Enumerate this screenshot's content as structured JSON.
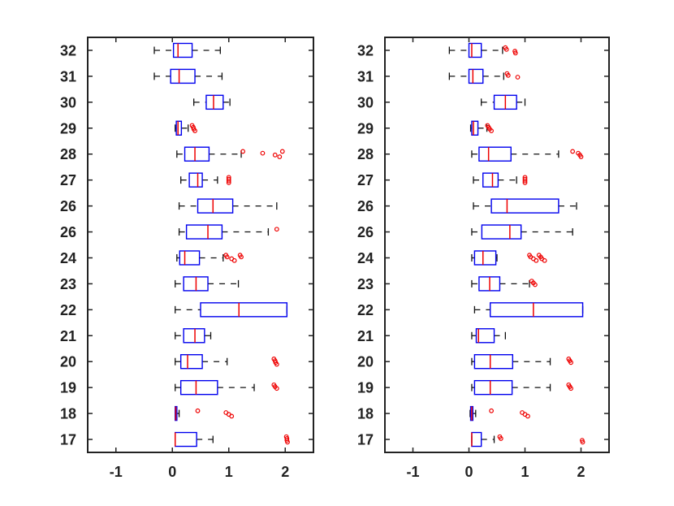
{
  "chart_data": [
    {
      "type": "boxplot",
      "orientation": "horizontal",
      "title": "",
      "xlabel": "",
      "ylabel": "",
      "xlim": [
        -1.5,
        2.5
      ],
      "xticks": [
        -1,
        0,
        1,
        2
      ],
      "xtick_labels": [
        "-1",
        "0",
        "1",
        "2"
      ],
      "grid": false,
      "categories": [
        "32",
        "31",
        "30",
        "29",
        "28",
        "27",
        "26",
        "26",
        "24",
        "23",
        "22",
        "21",
        "20",
        "19",
        "18",
        "17"
      ],
      "boxes": [
        {
          "whisker_low": -0.32,
          "q1": 0.02,
          "median": 0.1,
          "q3": 0.35,
          "whisker_high": 0.85,
          "outliers": []
        },
        {
          "whisker_low": -0.32,
          "q1": -0.03,
          "median": 0.12,
          "q3": 0.4,
          "whisker_high": 0.88,
          "outliers": []
        },
        {
          "whisker_low": 0.38,
          "q1": 0.6,
          "median": 0.73,
          "q3": 0.9,
          "whisker_high": 1.02,
          "outliers": []
        },
        {
          "whisker_low": 0.05,
          "q1": 0.07,
          "median": 0.1,
          "q3": 0.16,
          "whisker_high": 0.28,
          "outliers": [
            0.35,
            0.37,
            0.38,
            0.4
          ]
        },
        {
          "whisker_low": 0.08,
          "q1": 0.22,
          "median": 0.4,
          "q3": 0.65,
          "whisker_high": 1.22,
          "outliers": [
            1.25,
            1.6,
            1.82,
            1.9,
            1.95
          ]
        },
        {
          "whisker_low": 0.15,
          "q1": 0.3,
          "median": 0.45,
          "q3": 0.53,
          "whisker_high": 0.8,
          "outliers": [
            1.0,
            1.0,
            1.0,
            1.0
          ]
        },
        {
          "whisker_low": 0.12,
          "q1": 0.45,
          "median": 0.72,
          "q3": 1.07,
          "whisker_high": 1.85,
          "outliers": []
        },
        {
          "whisker_low": 0.12,
          "q1": 0.25,
          "median": 0.63,
          "q3": 0.88,
          "whisker_high": 1.7,
          "outliers": [
            1.85
          ]
        },
        {
          "whisker_low": 0.08,
          "q1": 0.13,
          "median": 0.22,
          "q3": 0.48,
          "whisker_high": 0.9,
          "outliers": [
            0.95,
            0.97,
            1.05,
            1.1,
            1.2,
            1.22
          ]
        },
        {
          "whisker_low": 0.05,
          "q1": 0.2,
          "median": 0.42,
          "q3": 0.63,
          "whisker_high": 1.17,
          "outliers": []
        },
        {
          "whisker_low": 0.05,
          "q1": 0.5,
          "median": 1.18,
          "q3": 2.03,
          "whisker_high": 2.03,
          "outliers": []
        },
        {
          "whisker_low": 0.05,
          "q1": 0.2,
          "median": 0.4,
          "q3": 0.57,
          "whisker_high": 0.68,
          "outliers": []
        },
        {
          "whisker_low": 0.05,
          "q1": 0.15,
          "median": 0.27,
          "q3": 0.53,
          "whisker_high": 0.97,
          "outliers": [
            1.8,
            1.82,
            1.83,
            1.85
          ]
        },
        {
          "whisker_low": 0.05,
          "q1": 0.15,
          "median": 0.42,
          "q3": 0.8,
          "whisker_high": 1.45,
          "outliers": [
            1.8,
            1.82,
            1.85
          ]
        },
        {
          "whisker_low": 0.05,
          "q1": 0.05,
          "median": 0.06,
          "q3": 0.08,
          "whisker_high": 0.12,
          "outliers": [
            0.45,
            0.95,
            1.0,
            1.05
          ]
        },
        {
          "whisker_low": 0.05,
          "q1": 0.05,
          "median": 0.05,
          "q3": 0.43,
          "whisker_high": 0.72,
          "outliers": [
            2.02,
            2.03,
            2.03,
            2.04
          ]
        }
      ]
    },
    {
      "type": "boxplot",
      "orientation": "horizontal",
      "title": "",
      "xlabel": "",
      "ylabel": "",
      "xlim": [
        -1.5,
        2.5
      ],
      "xticks": [
        -1,
        0,
        1,
        2
      ],
      "xtick_labels": [
        "-1",
        "0",
        "1",
        "2"
      ],
      "grid": false,
      "categories": [
        "32",
        "31",
        "30",
        "29",
        "28",
        "27",
        "26",
        "26",
        "24",
        "23",
        "22",
        "21",
        "20",
        "19",
        "18",
        "17"
      ],
      "boxes": [
        {
          "whisker_low": -0.35,
          "q1": 0.0,
          "median": 0.05,
          "q3": 0.22,
          "whisker_high": 0.6,
          "outliers": [
            0.65,
            0.67,
            0.82,
            0.83
          ]
        },
        {
          "whisker_low": -0.35,
          "q1": 0.0,
          "median": 0.07,
          "q3": 0.25,
          "whisker_high": 0.62,
          "outliers": [
            0.68,
            0.7,
            0.87
          ]
        },
        {
          "whisker_low": 0.22,
          "q1": 0.45,
          "median": 0.65,
          "q3": 0.85,
          "whisker_high": 1.0,
          "outliers": []
        },
        {
          "whisker_low": 0.03,
          "q1": 0.05,
          "median": 0.08,
          "q3": 0.16,
          "whisker_high": 0.32,
          "outliers": [
            0.33,
            0.35,
            0.37,
            0.4
          ]
        },
        {
          "whisker_low": 0.05,
          "q1": 0.18,
          "median": 0.35,
          "q3": 0.75,
          "whisker_high": 1.6,
          "outliers": [
            1.85,
            1.95,
            1.98,
            2.0
          ]
        },
        {
          "whisker_low": 0.08,
          "q1": 0.25,
          "median": 0.42,
          "q3": 0.52,
          "whisker_high": 0.85,
          "outliers": [
            1.0,
            1.0,
            1.0,
            1.0
          ]
        },
        {
          "whisker_low": 0.08,
          "q1": 0.4,
          "median": 0.68,
          "q3": 1.6,
          "whisker_high": 1.92,
          "outliers": []
        },
        {
          "whisker_low": 0.05,
          "q1": 0.23,
          "median": 0.73,
          "q3": 0.93,
          "whisker_high": 1.85,
          "outliers": []
        },
        {
          "whisker_low": 0.05,
          "q1": 0.1,
          "median": 0.25,
          "q3": 0.48,
          "whisker_high": 0.5,
          "outliers": [
            1.08,
            1.1,
            1.15,
            1.2,
            1.25,
            1.28,
            1.3,
            1.35
          ]
        },
        {
          "whisker_low": 0.05,
          "q1": 0.18,
          "median": 0.37,
          "q3": 0.55,
          "whisker_high": 1.08,
          "outliers": [
            1.12,
            1.15,
            1.18
          ]
        },
        {
          "whisker_low": 0.1,
          "q1": 0.38,
          "median": 1.15,
          "q3": 2.03,
          "whisker_high": 2.03,
          "outliers": []
        },
        {
          "whisker_low": 0.05,
          "q1": 0.13,
          "median": 0.17,
          "q3": 0.45,
          "whisker_high": 0.65,
          "outliers": []
        },
        {
          "whisker_low": 0.05,
          "q1": 0.1,
          "median": 0.38,
          "q3": 0.78,
          "whisker_high": 1.45,
          "outliers": [
            1.78,
            1.8,
            1.82
          ]
        },
        {
          "whisker_low": 0.05,
          "q1": 0.1,
          "median": 0.38,
          "q3": 0.77,
          "whisker_high": 1.45,
          "outliers": [
            1.78,
            1.8,
            1.82
          ]
        },
        {
          "whisker_low": 0.02,
          "q1": 0.03,
          "median": 0.05,
          "q3": 0.07,
          "whisker_high": 0.12,
          "outliers": [
            0.4,
            0.95,
            1.0,
            1.05
          ]
        },
        {
          "whisker_low": 0.05,
          "q1": 0.05,
          "median": 0.05,
          "q3": 0.22,
          "whisker_high": 0.45,
          "outliers": [
            0.55,
            0.57,
            2.02,
            2.03
          ]
        }
      ]
    }
  ],
  "colors": {
    "box": "#0000ee",
    "median": "#ee0000",
    "whisker": "#111111",
    "outlier": "#ee0000",
    "axis": "#222222"
  }
}
